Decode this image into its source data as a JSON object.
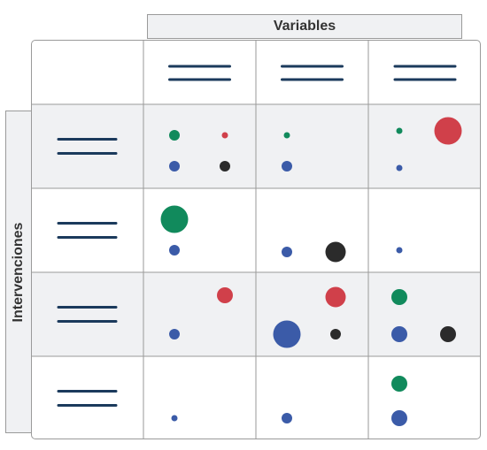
{
  "header": {
    "variables_label": "Variables"
  },
  "sidebar": {
    "interventions_label": "Intervenciones"
  },
  "colors": {
    "green": "#118a5c",
    "red": "#d0404a",
    "blue": "#3b5ba8",
    "black": "#2b2b2b",
    "placeholder_line": "#1b3a5c",
    "shaded_row": "#f0f1f3",
    "grid_line": "#9a9a9a"
  },
  "rows_shaded": [
    true,
    false,
    true,
    false
  ],
  "cells": [
    [
      [
        {
          "color": "green",
          "size": "m"
        },
        {
          "color": "red",
          "size": "s"
        },
        {
          "color": "blue",
          "size": "m"
        },
        {
          "color": "black",
          "size": "m"
        }
      ],
      [
        {
          "color": "green",
          "size": "s"
        },
        {
          "color": "blue",
          "size": "m"
        }
      ],
      [
        {
          "color": "green",
          "size": "s"
        },
        {
          "color": "red",
          "size": "xl"
        },
        {
          "color": "blue",
          "size": "s"
        }
      ]
    ],
    [
      [
        {
          "color": "green",
          "size": "xl"
        },
        {
          "color": "blue",
          "size": "m"
        }
      ],
      [
        {
          "color": "blue",
          "size": "m"
        },
        {
          "color": "black",
          "size": "l"
        }
      ],
      [
        {
          "color": "blue",
          "size": "s"
        }
      ]
    ],
    [
      [
        {
          "color": "red",
          "size": "ml"
        },
        {
          "color": "blue",
          "size": "m"
        }
      ],
      [
        {
          "color": "red",
          "size": "l"
        },
        {
          "color": "blue",
          "size": "xl"
        },
        {
          "color": "black",
          "size": "m"
        }
      ],
      [
        {
          "color": "green",
          "size": "ml"
        },
        {
          "color": "blue",
          "size": "ml"
        },
        {
          "color": "black",
          "size": "ml"
        }
      ]
    ],
    [
      [
        {
          "color": "blue",
          "size": "s"
        }
      ],
      [
        {
          "color": "blue",
          "size": "m"
        }
      ],
      [
        {
          "color": "green",
          "size": "ml"
        },
        {
          "color": "blue",
          "size": "ml"
        }
      ]
    ]
  ]
}
